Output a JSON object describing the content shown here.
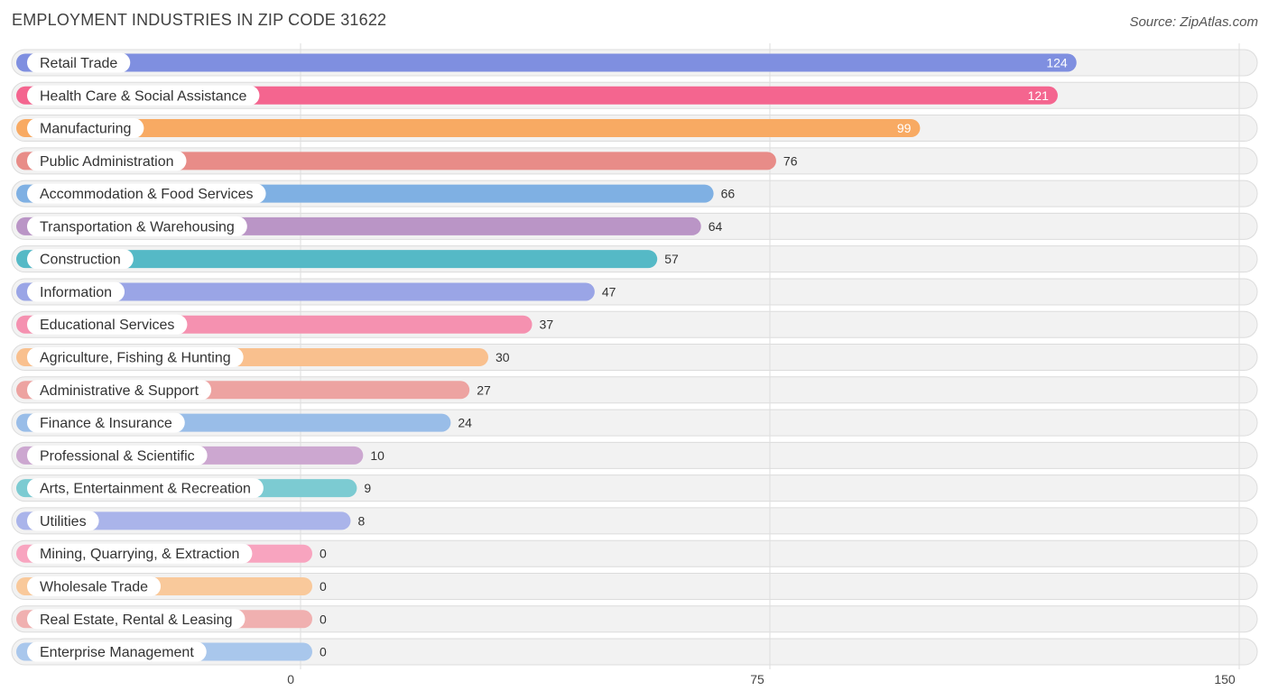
{
  "header": {
    "title": "EMPLOYMENT INDUSTRIES IN ZIP CODE 31622",
    "source": "Source: ZipAtlas.com"
  },
  "chart_data": {
    "type": "bar",
    "orientation": "horizontal",
    "title": "EMPLOYMENT INDUSTRIES IN ZIP CODE 31622",
    "xlim": [
      0,
      150
    ],
    "x_ticks": [
      "0",
      "75",
      "150"
    ],
    "grid": true,
    "categories": [
      "Retail Trade",
      "Health Care & Social Assistance",
      "Manufacturing",
      "Public Administration",
      "Accommodation & Food Services",
      "Transportation & Warehousing",
      "Construction",
      "Information",
      "Educational Services",
      "Agriculture, Fishing & Hunting",
      "Administrative & Support",
      "Finance & Insurance",
      "Professional & Scientific",
      "Arts, Entertainment & Recreation",
      "Utilities",
      "Mining, Quarrying, & Extraction",
      "Wholesale Trade",
      "Real Estate, Rental & Leasing",
      "Enterprise Management"
    ],
    "values": [
      124,
      121,
      99,
      76,
      66,
      64,
      57,
      47,
      37,
      30,
      27,
      24,
      10,
      9,
      8,
      0,
      0,
      0,
      0
    ],
    "colors": [
      "#7f8fe0",
      "#f4658f",
      "#f8aa63",
      "#e88c88",
      "#7fb0e3",
      "#ba95c6",
      "#55b9c6",
      "#9aa5e6",
      "#f591b0",
      "#f9c08e",
      "#eda3a1",
      "#99bde8",
      "#cca7d0",
      "#7ccbd2",
      "#aab4ea",
      "#f8a4bf",
      "#f9c99b",
      "#f0b0b0",
      "#a9c7ec"
    ]
  }
}
